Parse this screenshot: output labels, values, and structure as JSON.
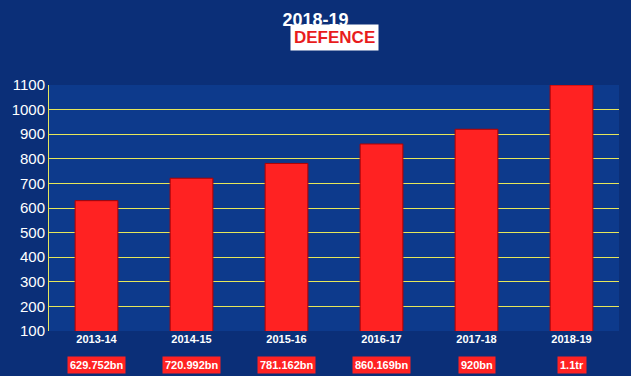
{
  "chart_data": {
    "type": "bar",
    "title": "2018-19",
    "subtitle": "DEFENCE",
    "categories": [
      "2013-14",
      "2014-15",
      "2015-16",
      "2016-17",
      "2017-18",
      "2018-19"
    ],
    "values": [
      629.752,
      720.992,
      781.162,
      860.169,
      920,
      1100
    ],
    "value_labels": [
      "629.752bn",
      "720.992bn",
      "781.162bn",
      "860.169bn",
      "920bn",
      "1.1tr"
    ],
    "color": "#ff2222",
    "ylim": [
      100,
      1100
    ],
    "yticks": [
      100,
      200,
      300,
      400,
      500,
      600,
      700,
      800,
      900,
      1000,
      1100
    ],
    "grid": true,
    "data_labels": true
  }
}
